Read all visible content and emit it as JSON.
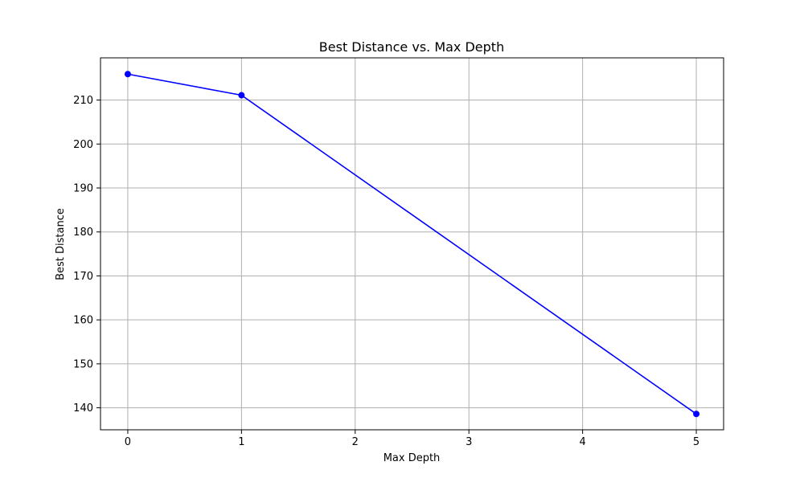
{
  "chart_data": {
    "type": "line",
    "title": "Best Distance vs. Max Depth",
    "xlabel": "Max Depth",
    "ylabel": "Best Distance",
    "x": [
      0,
      1,
      5
    ],
    "series": [
      {
        "values": [
          215.9,
          211.1,
          138.6
        ],
        "color": "#0000ff",
        "marker": "circle"
      }
    ],
    "xlim": [
      -0.24,
      5.24
    ],
    "ylim": [
      135.0,
      219.6
    ],
    "xticks": [
      "0",
      "1",
      "2",
      "3",
      "4",
      "5"
    ],
    "yticks": [
      "140",
      "150",
      "160",
      "170",
      "180",
      "190",
      "200",
      "210"
    ],
    "grid": true
  }
}
